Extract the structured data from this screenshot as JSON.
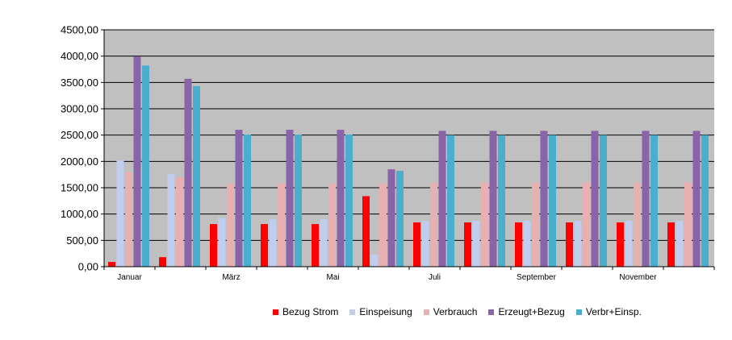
{
  "chart_data": {
    "type": "bar",
    "categories": [
      "Januar",
      "",
      "März",
      "",
      "Mai",
      "",
      "Juli",
      "",
      "September",
      "",
      "November",
      ""
    ],
    "ylim": [
      0,
      4500
    ],
    "yticks": [
      "0,00",
      "500,00",
      "1000,00",
      "1500,00",
      "2000,00",
      "2500,00",
      "3000,00",
      "3500,00",
      "4000,00",
      "4500,00"
    ],
    "grid": true,
    "legend_position": "bottom",
    "series": [
      {
        "name": "Bezug Strom",
        "color": "#ff0000",
        "values": [
          90,
          180,
          810,
          810,
          810,
          1340,
          840,
          840,
          840,
          840,
          840,
          840
        ]
      },
      {
        "name": "Einspeisung",
        "color": "#c0cdee",
        "values": [
          2020,
          1760,
          930,
          900,
          900,
          230,
          870,
          870,
          870,
          870,
          870,
          870
        ]
      },
      {
        "name": "Verbrauch",
        "color": "#e8b0b0",
        "values": [
          1800,
          1700,
          1580,
          1580,
          1580,
          1580,
          1600,
          1600,
          1600,
          1600,
          1600,
          1600
        ]
      },
      {
        "name": "Erzeugt+Bezug",
        "color": "#8a64a8",
        "values": [
          3990,
          3570,
          2600,
          2600,
          2600,
          1850,
          2580,
          2580,
          2580,
          2580,
          2580,
          2580
        ]
      },
      {
        "name": "Verbr+Einsp.",
        "color": "#4aaecc",
        "values": [
          3820,
          3430,
          2510,
          2510,
          2510,
          1820,
          2500,
          2500,
          2500,
          2500,
          2500,
          2500
        ]
      }
    ]
  }
}
